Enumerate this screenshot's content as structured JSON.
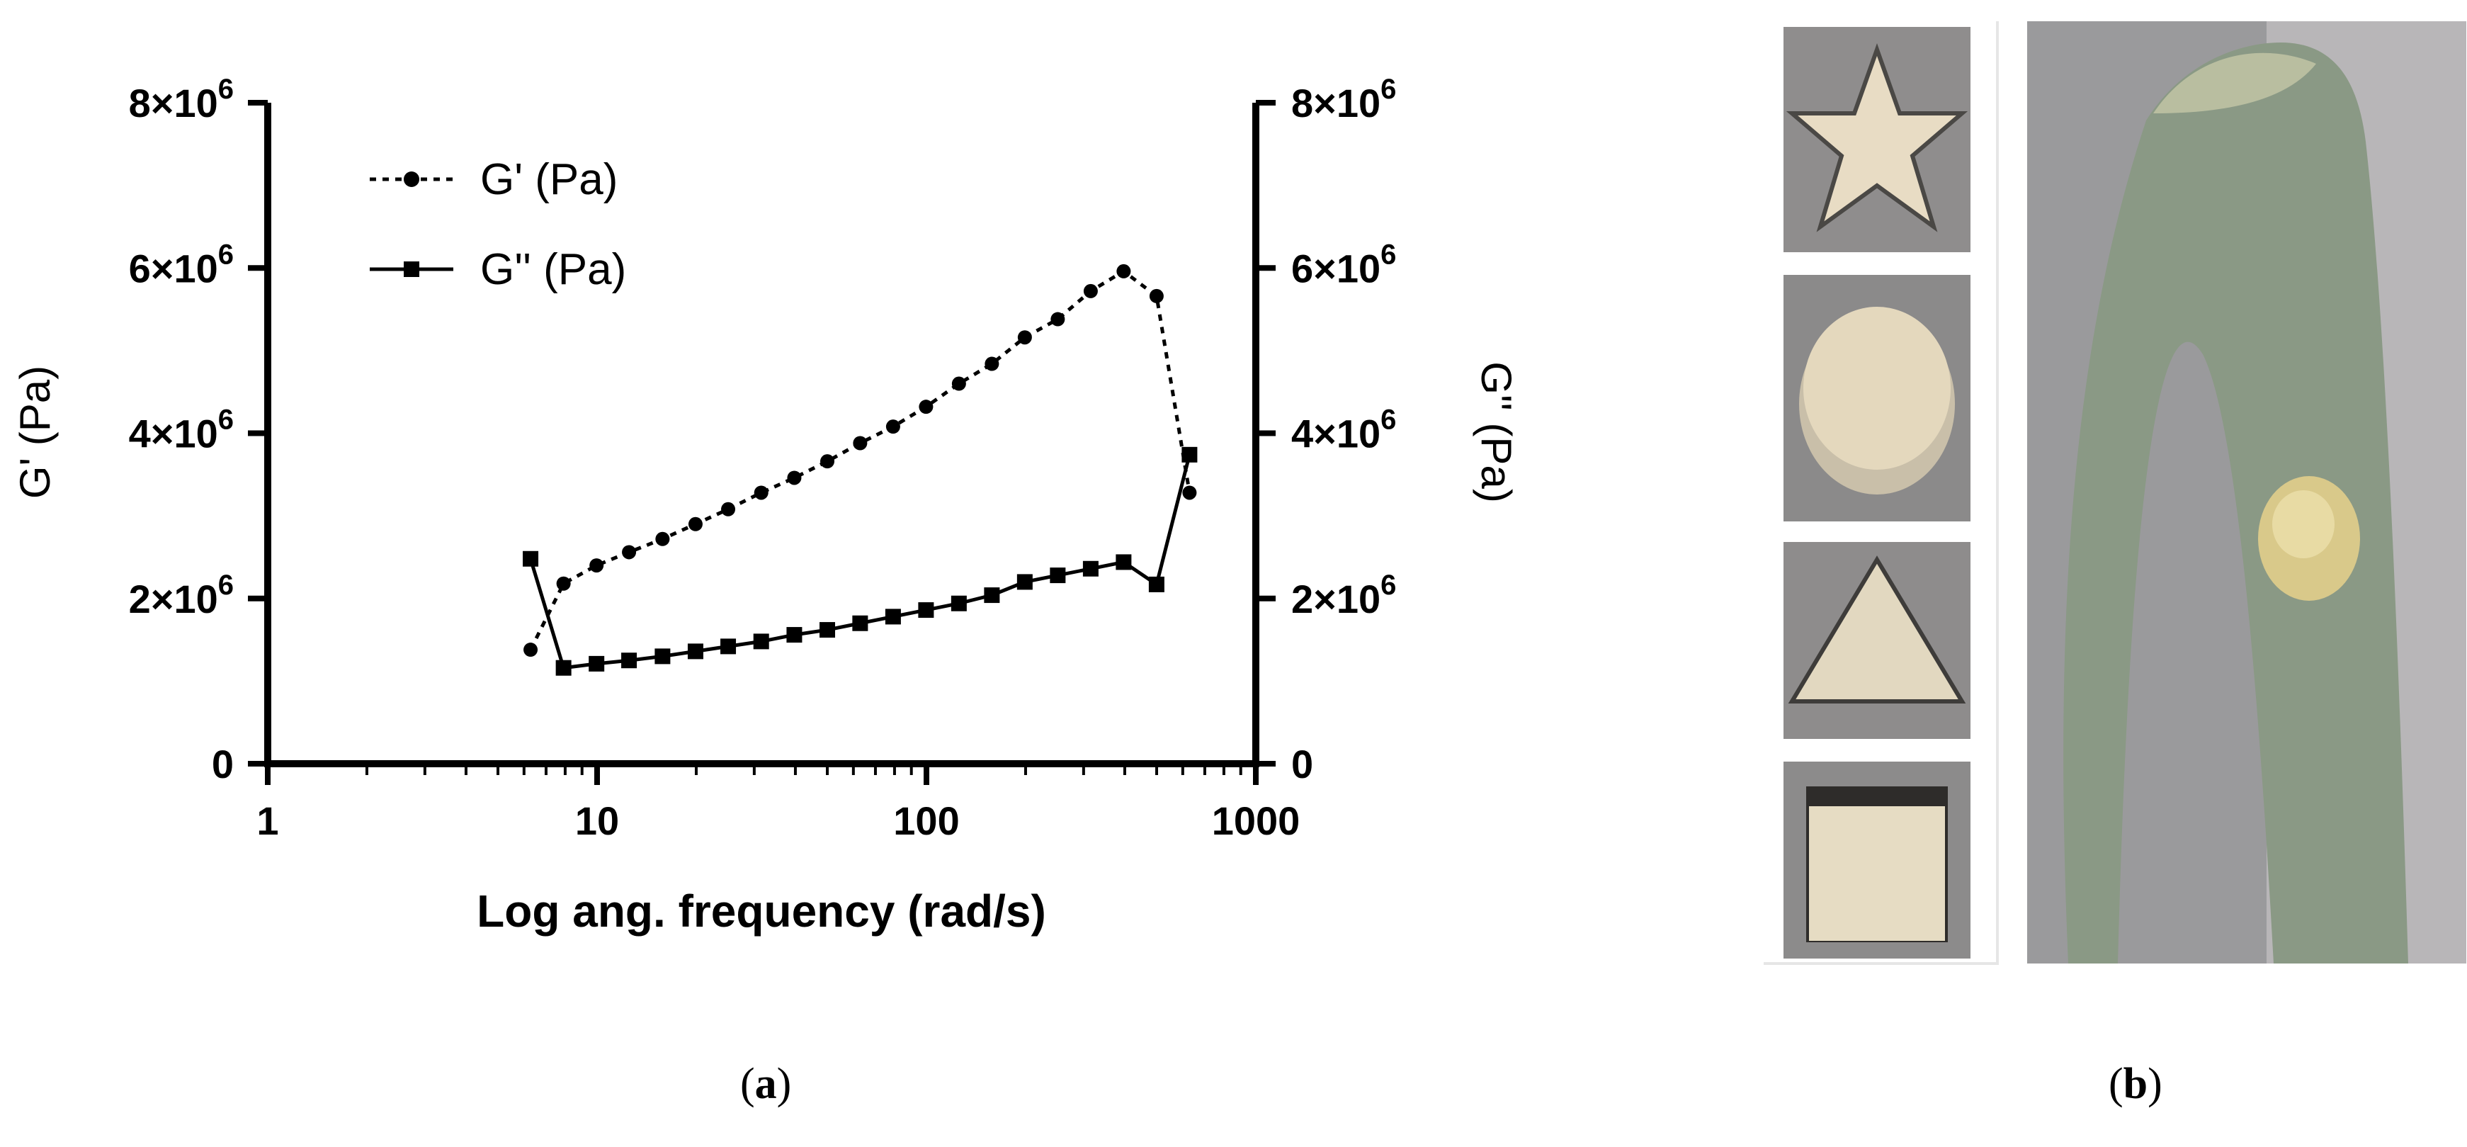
{
  "figure": {
    "panel_a_caption": {
      "open": "(",
      "letter": "a",
      "close": ")"
    },
    "panel_b_caption": {
      "open": "(",
      "letter": "b",
      "close": ")"
    }
  },
  "chart_data": {
    "type": "line",
    "xlabel": "Log ang. frequency (rad/s)",
    "ylabel_left": "G' (Pa)",
    "ylabel_right": "G'' (Pa)",
    "x_scale": "log",
    "xlim": [
      1,
      1000
    ],
    "x_ticks": [
      1,
      10,
      100,
      1000
    ],
    "x_tick_labels": [
      "1",
      "10",
      "100",
      "1000"
    ],
    "ylim": [
      0,
      8000000
    ],
    "y_ticks": [
      0,
      2000000,
      4000000,
      6000000,
      8000000
    ],
    "y_tick_labels": [
      {
        "base": "0",
        "exp": ""
      },
      {
        "base": "2×10",
        "exp": "6"
      },
      {
        "base": "4×10",
        "exp": "6"
      },
      {
        "base": "6×10",
        "exp": "6"
      },
      {
        "base": "8×10",
        "exp": "6"
      }
    ],
    "legend_position": "top-left",
    "grid": false,
    "series": [
      {
        "name": "G' (Pa)",
        "axis": "left",
        "line_style": "dotted",
        "marker": "circle",
        "color": "#000000",
        "x": [
          6.28,
          7.91,
          9.96,
          12.5,
          15.8,
          19.9,
          25.0,
          31.5,
          39.7,
          50.0,
          62.9,
          79.2,
          99.7,
          125.5,
          158.0,
          198.9,
          250.4,
          315.3,
          396.9,
          499.7,
          629.1
        ],
        "y": [
          1380000,
          2180000,
          2400000,
          2560000,
          2720000,
          2900000,
          3080000,
          3280000,
          3460000,
          3660000,
          3880000,
          4080000,
          4320000,
          4600000,
          4840000,
          5160000,
          5380000,
          5720000,
          5960000,
          5660000,
          3280000
        ]
      },
      {
        "name": "G'' (Pa)",
        "axis": "right",
        "line_style": "solid",
        "marker": "square",
        "color": "#000000",
        "x": [
          6.28,
          7.91,
          9.96,
          12.5,
          15.8,
          19.9,
          25.0,
          31.5,
          39.7,
          50.0,
          62.9,
          79.2,
          99.7,
          125.5,
          158.0,
          198.9,
          250.4,
          315.3,
          396.9,
          499.7,
          629.1
        ],
        "y": [
          2480000,
          1160000,
          1210000,
          1250000,
          1300000,
          1360000,
          1420000,
          1480000,
          1560000,
          1620000,
          1700000,
          1780000,
          1860000,
          1940000,
          2040000,
          2200000,
          2280000,
          2360000,
          2440000,
          2170000,
          3740000
        ]
      }
    ]
  },
  "photos": {
    "thumbnails": [
      "star",
      "circle",
      "triangle",
      "square"
    ],
    "main": "plant-stem-with-gel"
  }
}
